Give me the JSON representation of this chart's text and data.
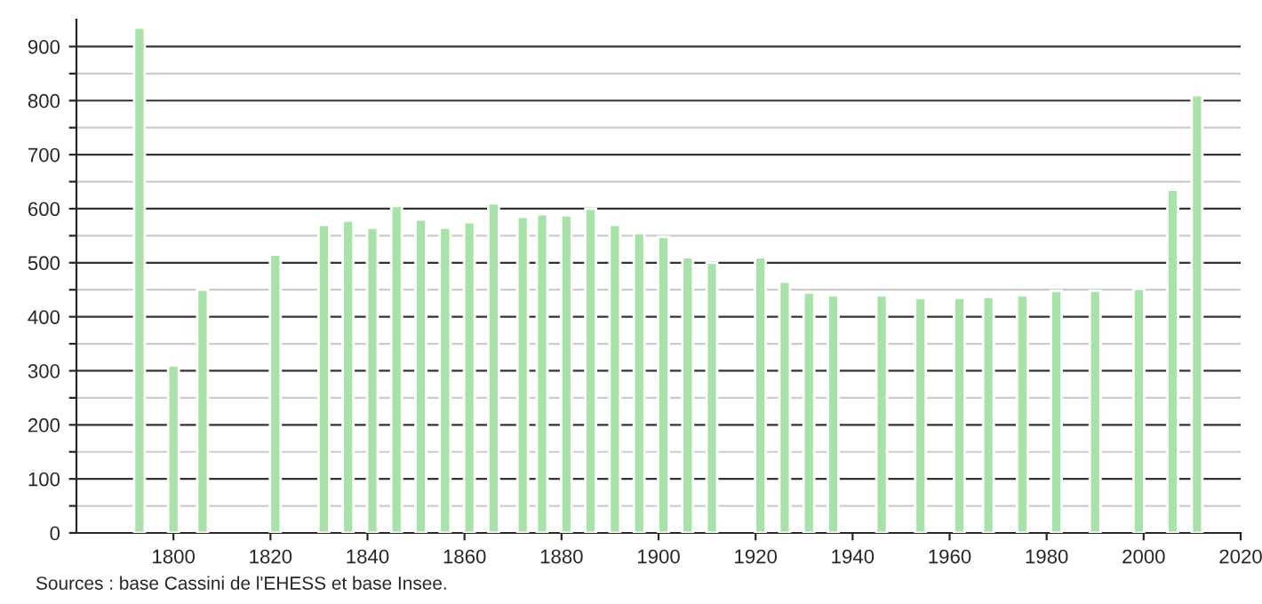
{
  "chart_data": {
    "type": "bar",
    "x": [
      1793,
      1800,
      1806,
      1821,
      1831,
      1836,
      1841,
      1846,
      1851,
      1856,
      1861,
      1866,
      1872,
      1876,
      1881,
      1886,
      1891,
      1896,
      1901,
      1906,
      1911,
      1921,
      1926,
      1931,
      1936,
      1946,
      1954,
      1962,
      1968,
      1975,
      1982,
      1990,
      1999,
      2006,
      2011
    ],
    "values": [
      935,
      310,
      450,
      515,
      570,
      578,
      565,
      605,
      580,
      565,
      575,
      610,
      585,
      590,
      588,
      600,
      570,
      555,
      548,
      510,
      500,
      510,
      465,
      445,
      440,
      440,
      435,
      435,
      437,
      440,
      448,
      448,
      452,
      635,
      810
    ],
    "color": "#a8e2a8",
    "xlim": [
      1780,
      2020
    ],
    "xticks": [
      1800,
      1820,
      1840,
      1860,
      1880,
      1900,
      1920,
      1940,
      1960,
      1980,
      2000,
      2020
    ],
    "ylim": [
      0,
      950
    ],
    "yticks": [
      0,
      {
        "value": 50,
        "label": null
      },
      100,
      {
        "value": 150,
        "label": null
      },
      200,
      {
        "value": 250,
        "label": null
      },
      300,
      {
        "value": 350,
        "label": null
      },
      400,
      {
        "value": 450,
        "label": null
      },
      500,
      {
        "value": 550,
        "label": null
      },
      600,
      {
        "value": 650,
        "label": null
      },
      700,
      {
        "value": 750,
        "label": null
      },
      800,
      {
        "value": 850,
        "label": null
      },
      900
    ],
    "grid": "y",
    "annotations": [
      "Sources : base Cassini de l'EHESS et base Insee."
    ]
  }
}
